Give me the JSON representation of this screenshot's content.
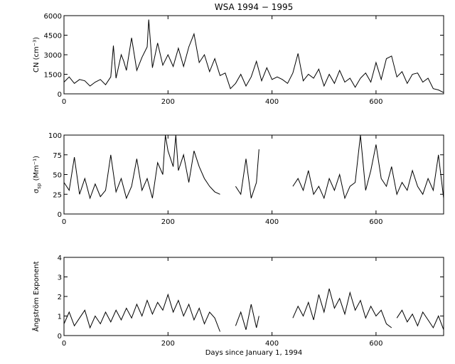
{
  "title": "WSA 1994 − 1995",
  "xlabel": "Days since January 1, 1994",
  "colors": {
    "line": "#000000",
    "axes": "#000000",
    "background": "#ffffff"
  },
  "chart_data": [
    {
      "type": "line",
      "title": "WSA 1994 − 1995",
      "xlabel": "",
      "ylabel_main": "CN",
      "ylabel_unit": "(cm⁻³)",
      "xlim": [
        0,
        730
      ],
      "ylim": [
        0,
        6000
      ],
      "xticks": [
        0,
        200,
        400,
        600
      ],
      "xticklabels": [
        "0",
        "200",
        "400",
        "600"
      ],
      "yticks": [
        0,
        1500,
        3000,
        4500,
        6000
      ],
      "yticklabels": [
        "0",
        "1500",
        "3000",
        "4500",
        "6000"
      ],
      "grid": false,
      "series": [
        {
          "x": [
            0,
            10,
            20,
            30,
            40,
            50,
            60,
            70,
            80,
            90,
            95,
            100,
            110,
            115,
            120,
            130,
            140,
            150,
            160,
            163,
            170,
            180,
            190,
            200,
            210,
            220,
            230,
            240,
            250,
            260,
            270,
            280,
            290,
            300,
            310,
            320,
            330,
            340,
            350,
            360,
            370,
            380,
            390,
            400,
            410,
            420,
            430,
            440,
            450,
            460,
            470,
            480,
            490,
            500,
            510,
            520,
            530,
            540,
            550,
            560,
            570,
            580,
            590,
            600,
            610,
            620,
            630,
            640,
            650,
            660,
            670,
            680,
            690,
            700,
            710,
            720,
            730
          ],
          "y": [
            900,
            1300,
            800,
            1100,
            1000,
            600,
            900,
            1100,
            700,
            1300,
            3700,
            1200,
            3000,
            2500,
            1800,
            4300,
            1800,
            2800,
            3600,
            5700,
            2000,
            3900,
            2200,
            3000,
            2100,
            3500,
            2100,
            3600,
            4600,
            2400,
            3000,
            1700,
            2700,
            1400,
            1600,
            400,
            800,
            1500,
            600,
            1300,
            2500,
            1000,
            2000,
            1100,
            1300,
            1100,
            800,
            1600,
            3100,
            1000,
            1500,
            1200,
            1900,
            600,
            1500,
            800,
            1800,
            900,
            1200,
            500,
            1200,
            1600,
            900,
            2400,
            1100,
            2700,
            2900,
            1300,
            1700,
            800,
            1500,
            1600,
            900,
            1200,
            400,
            300,
            100
          ]
        }
      ]
    },
    {
      "type": "line",
      "xlabel": "",
      "ylabel_main": "σ",
      "ylabel_sub": "sp",
      "ylabel_unit": "(Mm⁻¹)",
      "xlim": [
        0,
        730
      ],
      "ylim": [
        0,
        100
      ],
      "xticks": [
        0,
        200,
        400,
        600
      ],
      "xticklabels": [
        "0",
        "200",
        "400",
        "600"
      ],
      "yticks": [
        0,
        25,
        50,
        75,
        100
      ],
      "yticklabels": [
        "0",
        "25",
        "50",
        "75",
        "100"
      ],
      "grid": false,
      "series": [
        {
          "x": [
            0,
            10,
            20,
            30,
            40,
            50,
            60,
            70,
            80,
            90,
            100,
            110,
            120,
            130,
            140,
            150,
            160,
            170,
            180,
            190,
            195,
            200,
            210,
            215,
            220,
            230,
            240,
            250,
            260,
            270,
            280,
            290,
            300,
            null,
            330,
            340,
            350,
            360,
            370,
            375,
            null,
            440,
            450,
            460,
            470,
            480,
            490,
            500,
            510,
            520,
            530,
            540,
            550,
            560,
            570,
            580,
            590,
            600,
            610,
            620,
            630,
            640,
            650,
            660,
            670,
            680,
            690,
            700,
            710,
            720,
            730
          ],
          "y": [
            40,
            30,
            72,
            25,
            45,
            20,
            38,
            22,
            30,
            75,
            28,
            45,
            20,
            35,
            70,
            30,
            45,
            20,
            65,
            50,
            100,
            80,
            60,
            100,
            55,
            75,
            40,
            80,
            60,
            45,
            35,
            28,
            25,
            null,
            35,
            25,
            70,
            20,
            40,
            82,
            null,
            35,
            45,
            30,
            55,
            25,
            35,
            20,
            45,
            30,
            50,
            20,
            35,
            40,
            100,
            30,
            55,
            88,
            45,
            35,
            60,
            25,
            40,
            30,
            55,
            35,
            25,
            45,
            30,
            75,
            20
          ]
        }
      ]
    },
    {
      "type": "line",
      "xlabel": "Days since January 1, 1994",
      "ylabel_main": "Ångström Exponent",
      "xlim": [
        0,
        730
      ],
      "ylim": [
        0,
        4
      ],
      "xticks": [
        0,
        200,
        400,
        600
      ],
      "xticklabels": [
        "0",
        "200",
        "400",
        "600"
      ],
      "yticks": [
        0,
        1,
        2,
        3,
        4
      ],
      "yticklabels": [
        "0",
        "1",
        "2",
        "3",
        "4"
      ],
      "grid": false,
      "series": [
        {
          "x": [
            0,
            10,
            20,
            30,
            40,
            50,
            60,
            70,
            80,
            90,
            100,
            110,
            120,
            130,
            140,
            150,
            160,
            170,
            180,
            190,
            200,
            210,
            220,
            230,
            240,
            250,
            260,
            270,
            280,
            290,
            300,
            null,
            330,
            340,
            350,
            360,
            370,
            375,
            null,
            440,
            450,
            460,
            470,
            480,
            490,
            500,
            510,
            520,
            530,
            540,
            550,
            560,
            570,
            580,
            590,
            600,
            610,
            620,
            630,
            null,
            640,
            650,
            660,
            670,
            680,
            690,
            700,
            710,
            720,
            730
          ],
          "y": [
            0.6,
            1.2,
            0.5,
            0.9,
            1.3,
            0.4,
            1.0,
            0.6,
            1.2,
            0.7,
            1.3,
            0.8,
            1.4,
            0.9,
            1.6,
            1.0,
            1.8,
            1.1,
            1.7,
            1.3,
            2.1,
            1.2,
            1.8,
            1.0,
            1.6,
            0.8,
            1.4,
            0.6,
            1.2,
            0.9,
            0.2,
            null,
            0.5,
            1.2,
            0.3,
            1.6,
            0.4,
            1.0,
            null,
            0.9,
            1.5,
            1.0,
            1.7,
            0.8,
            2.1,
            1.2,
            2.4,
            1.4,
            1.9,
            1.1,
            2.2,
            1.3,
            1.8,
            0.9,
            1.5,
            1.0,
            1.3,
            0.6,
            0.4,
            null,
            0.9,
            1.3,
            0.7,
            1.1,
            0.5,
            1.2,
            0.8,
            0.4,
            1.0,
            0.3
          ]
        }
      ]
    }
  ]
}
